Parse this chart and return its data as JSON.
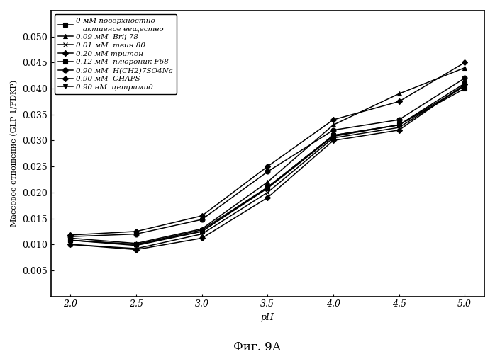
{
  "x": [
    2.0,
    2.5,
    3.0,
    3.5,
    4.0,
    4.5,
    5.0
  ],
  "series": [
    {
      "label": "0 мМ поверхностно-\n   активное вещество",
      "marker": "s",
      "markersize": 4,
      "values": [
        0.0108,
        0.01,
        0.0128,
        0.021,
        0.031,
        0.033,
        0.041
      ]
    },
    {
      "label": "0.09 мМ  Brij 78",
      "marker": "^",
      "markersize": 5,
      "values": [
        0.0112,
        0.0102,
        0.013,
        0.022,
        0.033,
        0.039,
        0.044
      ]
    },
    {
      "label": "0.01 мМ  твин 80",
      "marker": "x",
      "markersize": 5,
      "values": [
        0.01,
        0.0092,
        0.012,
        0.02,
        0.0305,
        0.0325,
        0.0405
      ]
    },
    {
      "label": "0.20 мМ тритон",
      "marker": "D",
      "markersize": 4,
      "values": [
        0.0118,
        0.0125,
        0.0155,
        0.025,
        0.034,
        0.0375,
        0.045
      ]
    },
    {
      "label": "0.12 мМ  плюроник F68",
      "marker": "s",
      "markersize": 4,
      "values": [
        0.0108,
        0.01,
        0.0125,
        0.0208,
        0.0308,
        0.033,
        0.04
      ]
    },
    {
      "label": "0.90 мМ  H(CH2)7SO4Na",
      "marker": "o",
      "markersize": 5,
      "values": [
        0.0115,
        0.012,
        0.0148,
        0.024,
        0.032,
        0.034,
        0.042
      ]
    },
    {
      "label": "0.90 мМ  CHAPS",
      "marker": "D",
      "markersize": 4,
      "values": [
        0.01,
        0.009,
        0.0112,
        0.019,
        0.03,
        0.032,
        0.0408
      ]
    },
    {
      "label": "0.90 нМ  цетримид",
      "marker": "v",
      "markersize": 4,
      "values": [
        0.0108,
        0.0098,
        0.0125,
        0.021,
        0.031,
        0.033,
        0.0405
      ]
    }
  ],
  "xlabel": "pH",
  "ylabel": "Массовое отношение (GLP-1/FDKP)",
  "title": "Фиг. 9А",
  "ylim": [
    0.0,
    0.055
  ],
  "yticks": [
    0.005,
    0.01,
    0.015,
    0.02,
    0.025,
    0.03,
    0.035,
    0.04,
    0.045,
    0.05
  ],
  "xticks": [
    2.0,
    2.5,
    3.0,
    3.5,
    4.0,
    4.5,
    5.0
  ],
  "color": "#000000",
  "background": "#ffffff",
  "legend_fontsize": 7.5,
  "axis_label_fontsize": 9,
  "tick_fontsize": 9,
  "title_fontsize": 12
}
